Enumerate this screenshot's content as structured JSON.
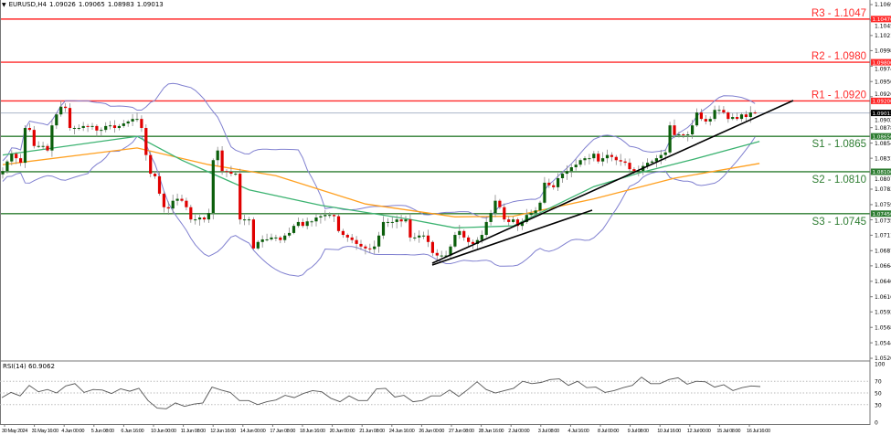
{
  "header": {
    "symbol": "EURUSD,H4",
    "open": "1.09026",
    "high": "1.09065",
    "low": "1.08983",
    "close": "1.09013",
    "menu_icon": "triangle-down-icon"
  },
  "rsi_panel": {
    "label": "RSI(14) 60.9062"
  },
  "colors": {
    "bull": "#0b5e0b",
    "bear": "#e00000",
    "resistance": "#ff2a2a",
    "support": "#2e7d32",
    "bollinger": "#8080d0",
    "ma_fast": "#3cb371",
    "ma_slow": "#ffa020",
    "trendline": "#000000",
    "current": "#aab4c8"
  },
  "chart_data": {
    "type": "candlestick",
    "title": "EURUSD,H4",
    "yaxis_ticks": [
      "1.10695",
      "1.10455",
      "1.10215",
      "1.09980",
      "1.09740",
      "1.09500",
      "1.09265",
      "1.09025",
      "1.08785",
      "1.08545",
      "1.08310",
      "1.08070",
      "1.07830",
      "1.07590",
      "1.07355",
      "1.07115",
      "1.06875",
      "1.06640",
      "1.06400",
      "1.06160",
      "1.05925",
      "1.05685",
      "1.05445",
      "1.05205"
    ],
    "ylim": [
      1.05205,
      1.10695
    ],
    "xaxis_ticks": [
      "30 May 2024",
      "31 May 16:00",
      "4 Jun 00:00",
      "5 Jun 08:00",
      "6 Jun 16:00",
      "10 Jun 00:00",
      "11 Jun 08:00",
      "12 Jun 16:00",
      "14 Jun 00:00",
      "17 Jun 08:00",
      "18 Jun 16:00",
      "20 Jun 00:00",
      "21 Jun 08:00",
      "24 Jun 16:00",
      "26 Jun 00:00",
      "27 Jun 08:00",
      "28 Jun 16:00",
      "2 Jul 00:00",
      "3 Jul 08:00",
      "4 Jul 16:00",
      "8 Jul 00:00",
      "9 Jul 08:00",
      "10 Jul 16:00",
      "12 Jul 00:00",
      "15 Jul 08:00",
      "16 Jul 16:00"
    ],
    "closes": [
      1.0811,
      1.0826,
      1.0838,
      1.0831,
      1.0824,
      1.0878,
      1.0875,
      1.085,
      1.085,
      1.085,
      1.0843,
      1.0882,
      1.0899,
      1.0911,
      1.0909,
      1.0878,
      1.0878,
      1.0878,
      1.0881,
      1.088,
      1.0881,
      1.0874,
      1.0875,
      1.0881,
      1.0882,
      1.0878,
      1.0881,
      1.0885,
      1.0888,
      1.0892,
      1.0892,
      1.0878,
      1.0836,
      1.0807,
      1.0803,
      1.0776,
      1.0755,
      1.0753,
      1.0765,
      1.0768,
      1.0765,
      1.0755,
      1.0736,
      1.0736,
      1.0739,
      1.0736,
      1.0746,
      1.0828,
      1.0843,
      1.0811,
      1.081,
      1.0807,
      1.0807,
      1.0736,
      1.0736,
      1.0736,
      1.0691,
      1.0701,
      1.0705,
      1.0705,
      1.0708,
      1.0708,
      1.0704,
      1.0711,
      1.0715,
      1.0726,
      1.0732,
      1.0726,
      1.0733,
      1.0733,
      1.0739,
      1.0741,
      1.0743,
      1.0743,
      1.0741,
      1.0718,
      1.0712,
      1.0708,
      1.0704,
      1.0698,
      1.0694,
      1.0691,
      1.069,
      1.0694,
      1.0711,
      1.0732,
      1.0732,
      1.0732,
      1.0736,
      1.0733,
      1.0736,
      1.0708,
      1.0708,
      1.0711,
      1.0711,
      1.0701,
      1.0684,
      1.068,
      1.068,
      1.068,
      1.0694,
      1.0712,
      1.0718,
      1.0708,
      1.0701,
      1.0698,
      1.0704,
      1.0712,
      1.0732,
      1.0746,
      1.0765,
      1.0755,
      1.0736,
      1.0732,
      1.0736,
      1.0726,
      1.0732,
      1.0743,
      1.0746,
      1.075,
      1.0762,
      1.0793,
      1.0789,
      1.0786,
      1.08,
      1.0807,
      1.0811,
      1.0817,
      1.0821,
      1.0828,
      1.0831,
      1.0831,
      1.0838,
      1.0826,
      1.0831,
      1.0836,
      1.0833,
      1.0828,
      1.0826,
      1.0824,
      1.0814,
      1.0811,
      1.0811,
      1.0819,
      1.0824,
      1.0826,
      1.0831,
      1.0836,
      1.084,
      1.0882,
      1.0867,
      1.0868,
      1.0867,
      1.0868,
      1.0882,
      1.0902,
      1.0892,
      1.0888,
      1.0892,
      1.0906,
      1.0906,
      1.0902,
      1.0892,
      1.0895,
      1.0892,
      1.0899,
      1.0895,
      1.0902,
      1.09013
    ],
    "ma_fast": [
      [
        0,
        1.0836
      ],
      [
        30,
        1.0865
      ],
      [
        40,
        1.0828
      ],
      [
        55,
        1.0782
      ],
      [
        71,
        1.0758
      ],
      [
        91,
        1.0736
      ],
      [
        101,
        1.0723
      ],
      [
        114,
        1.0726
      ],
      [
        132,
        1.0787
      ],
      [
        142,
        1.0808
      ],
      [
        154,
        1.0829
      ],
      [
        169,
        1.0857
      ]
    ],
    "ma_slow": [
      [
        0,
        1.0821
      ],
      [
        30,
        1.0847
      ],
      [
        46,
        1.0821
      ],
      [
        61,
        1.0804
      ],
      [
        81,
        1.076
      ],
      [
        101,
        1.074
      ],
      [
        114,
        1.0741
      ],
      [
        132,
        1.0768
      ],
      [
        150,
        1.08
      ],
      [
        169,
        1.0823
      ]
    ],
    "levels": [
      {
        "name": "R3",
        "label": "R3 - 1.1047",
        "tag": "1.10470",
        "value": 1.1047,
        "kind": "resistance"
      },
      {
        "name": "R2",
        "label": "R2 - 1.0980",
        "tag": "1.09800",
        "value": 1.098,
        "kind": "resistance"
      },
      {
        "name": "R1",
        "label": "R1 - 1.0920",
        "tag": "1.09200",
        "value": 1.092,
        "kind": "resistance"
      },
      {
        "name": "S1",
        "label": "S1 - 1.0865",
        "tag": "1.08650",
        "value": 1.0865,
        "kind": "support"
      },
      {
        "name": "S2",
        "label": "S2 - 1.0810",
        "tag": "1.08100",
        "value": 1.081,
        "kind": "support"
      },
      {
        "name": "S3",
        "label": "S3 - 1.0745",
        "tag": "1.07450",
        "value": 1.0745,
        "kind": "support"
      }
    ],
    "current_price": {
      "value": 1.09013,
      "tag": "1.09013"
    },
    "rsi": {
      "period": 14,
      "ticks": [
        "100",
        "70",
        "50",
        "30",
        "0"
      ],
      "levels": [
        70,
        50,
        30
      ],
      "values": [
        42,
        51,
        45,
        63,
        52,
        56,
        50,
        62,
        66,
        51,
        56,
        55,
        49,
        57,
        53,
        58,
        37,
        24,
        23,
        33,
        27,
        31,
        33,
        60,
        55,
        51,
        37,
        37,
        30,
        35,
        38,
        46,
        42,
        49,
        54,
        52,
        41,
        35,
        45,
        37,
        37,
        57,
        58,
        43,
        46,
        35,
        37,
        45,
        45,
        55,
        44,
        56,
        69,
        56,
        50,
        54,
        58,
        70,
        66,
        68,
        73,
        74,
        63,
        70,
        59,
        60,
        51,
        54,
        59,
        63,
        77,
        66,
        66,
        73,
        76,
        65,
        70,
        69,
        60,
        64,
        54,
        59,
        62,
        61
      ]
    }
  }
}
